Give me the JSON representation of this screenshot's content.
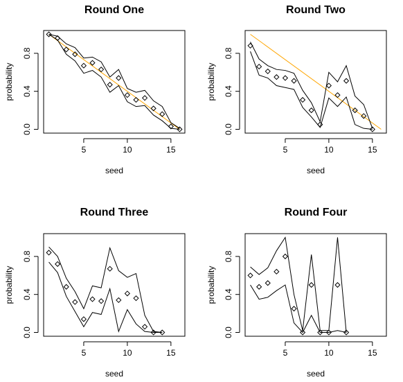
{
  "chart_data": [
    {
      "type": "line",
      "title": "Round One",
      "xlabel": "seed",
      "ylabel": "probability",
      "xlim": [
        0.4,
        16.6
      ],
      "ylim": [
        -0.04,
        1.04
      ],
      "xticks": [
        5,
        10,
        15
      ],
      "yticks": [
        0.0,
        0.4,
        0.8
      ],
      "ytick_labels": [
        "0.0",
        "0.4",
        "0.8"
      ],
      "points": {
        "x": [
          1,
          2,
          3,
          4,
          5,
          6,
          7,
          8,
          9,
          10,
          11,
          12,
          13,
          14,
          15,
          16
        ],
        "y": [
          1.0,
          0.96,
          0.84,
          0.79,
          0.67,
          0.7,
          0.63,
          0.47,
          0.54,
          0.36,
          0.31,
          0.33,
          0.22,
          0.16,
          0.03,
          0.0
        ]
      },
      "upper": [
        1.0,
        0.98,
        0.9,
        0.86,
        0.75,
        0.76,
        0.71,
        0.55,
        0.63,
        0.43,
        0.39,
        0.41,
        0.3,
        0.24,
        0.07,
        0.01
      ],
      "lower": [
        1.0,
        0.94,
        0.79,
        0.72,
        0.59,
        0.62,
        0.55,
        0.39,
        0.46,
        0.29,
        0.24,
        0.25,
        0.15,
        0.09,
        0.01,
        0.0
      ],
      "reference_line": {
        "x": [
          1,
          16
        ],
        "y": [
          1.0,
          0.0
        ],
        "color": "#ffa500"
      },
      "grid": false
    },
    {
      "type": "line",
      "title": "Round Two",
      "xlabel": "seed",
      "ylabel": "probability",
      "xlim": [
        0.4,
        16.6
      ],
      "ylim": [
        -0.04,
        1.04
      ],
      "xticks": [
        5,
        10,
        15
      ],
      "yticks": [
        0.0,
        0.4,
        0.8
      ],
      "ytick_labels": [
        "0.0",
        "0.4",
        "0.8"
      ],
      "points": {
        "x": [
          1,
          2,
          3,
          4,
          5,
          6,
          7,
          8,
          9,
          10,
          11,
          12,
          13,
          14,
          15
        ],
        "y": [
          0.88,
          0.66,
          0.61,
          0.55,
          0.54,
          0.51,
          0.31,
          0.2,
          0.05,
          0.46,
          0.36,
          0.51,
          0.2,
          0.14,
          0.0
        ]
      },
      "upper": [
        0.92,
        0.74,
        0.67,
        0.63,
        0.62,
        0.59,
        0.41,
        0.28,
        0.08,
        0.6,
        0.5,
        0.67,
        0.35,
        0.26,
        0.01
      ],
      "lower": [
        0.82,
        0.57,
        0.54,
        0.46,
        0.44,
        0.42,
        0.23,
        0.13,
        0.02,
        0.33,
        0.24,
        0.34,
        0.05,
        0.01,
        0.0
      ],
      "reference_line": {
        "x": [
          1,
          16
        ],
        "y": [
          1.0,
          0.0
        ],
        "color": "#ffa500"
      },
      "grid": false
    },
    {
      "type": "line",
      "title": "Round Three",
      "xlabel": "seed",
      "ylabel": "probability",
      "xlim": [
        0.4,
        16.6
      ],
      "ylim": [
        -0.04,
        1.04
      ],
      "xticks": [
        5,
        10,
        15
      ],
      "yticks": [
        0.0,
        0.4,
        0.8
      ],
      "ytick_labels": [
        "0.0",
        "0.4",
        "0.8"
      ],
      "points": {
        "x": [
          1,
          2,
          3,
          4,
          5,
          6,
          7,
          8,
          9,
          10,
          11,
          12,
          13,
          14
        ],
        "y": [
          0.84,
          0.72,
          0.48,
          0.32,
          0.14,
          0.35,
          0.33,
          0.67,
          0.34,
          0.41,
          0.36,
          0.06,
          0.0,
          0.0
        ]
      },
      "upper": [
        0.9,
        0.8,
        0.57,
        0.43,
        0.25,
        0.49,
        0.47,
        0.89,
        0.65,
        0.58,
        0.62,
        0.18,
        0.01,
        0.0
      ],
      "lower": [
        0.74,
        0.63,
        0.38,
        0.22,
        0.06,
        0.21,
        0.19,
        0.46,
        0.01,
        0.24,
        0.09,
        0.01,
        0.0,
        0.0
      ],
      "grid": false
    },
    {
      "type": "line",
      "title": "Round Four",
      "xlabel": "seed",
      "ylabel": "probability",
      "xlim": [
        0.4,
        16.6
      ],
      "ylim": [
        -0.04,
        1.04
      ],
      "xticks": [
        5,
        10,
        15
      ],
      "yticks": [
        0.0,
        0.4,
        0.8
      ],
      "ytick_labels": [
        "0.0",
        "0.4",
        "0.8"
      ],
      "points": {
        "x": [
          1,
          2,
          3,
          4,
          5,
          6,
          7,
          8,
          9,
          10,
          11,
          12
        ],
        "y": [
          0.6,
          0.48,
          0.52,
          0.64,
          0.8,
          0.25,
          0.0,
          0.5,
          0.0,
          0.0,
          0.5,
          0.0
        ]
      },
      "upper": [
        0.69,
        0.61,
        0.68,
        0.86,
        1.0,
        0.4,
        0.02,
        0.82,
        0.02,
        0.02,
        1.0,
        0.0
      ],
      "lower": [
        0.5,
        0.35,
        0.37,
        0.44,
        0.5,
        0.1,
        0.0,
        0.18,
        0.0,
        0.0,
        0.02,
        0.0
      ],
      "grid": false
    }
  ]
}
